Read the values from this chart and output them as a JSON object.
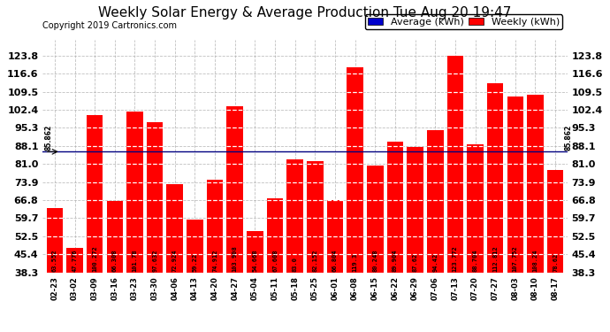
{
  "title": "Weekly Solar Energy & Average Production Tue Aug 20 19:47",
  "copyright": "Copyright 2019 Cartronics.com",
  "categories": [
    "02-23",
    "03-02",
    "03-09",
    "03-16",
    "03-23",
    "03-30",
    "04-06",
    "04-13",
    "04-20",
    "04-27",
    "05-04",
    "05-11",
    "05-18",
    "05-25",
    "06-01",
    "06-08",
    "06-15",
    "06-22",
    "06-29",
    "07-06",
    "07-13",
    "07-20",
    "07-27",
    "08-03",
    "08-10",
    "08-17"
  ],
  "values": [
    63.552,
    47.776,
    100.272,
    66.308,
    101.78,
    97.632,
    72.924,
    59.22,
    74.912,
    103.908,
    54.668,
    67.608,
    83.0,
    82.152,
    66.804,
    119.3,
    80.248,
    89.904,
    87.62,
    94.42,
    123.772,
    88.704,
    112.812,
    107.752,
    108.24,
    78.62
  ],
  "bar_color": "#ff0000",
  "average_value": 85.862,
  "average_label": "85.862",
  "ylim_min": 38.3,
  "ylim_max": 130.0,
  "yticks": [
    38.3,
    45.4,
    52.5,
    59.7,
    66.8,
    73.9,
    81.0,
    88.1,
    95.3,
    102.4,
    109.5,
    116.6,
    123.8
  ],
  "background_color": "#ffffff",
  "grid_color": "#b0b0b0",
  "legend_avg_color": "#0000cc",
  "legend_weekly_color": "#ff0000",
  "avg_line_color": "#000080",
  "value_text_color": "#000000",
  "title_color": "#000000",
  "copyright_color": "#000000",
  "title_fontsize": 11,
  "copyright_fontsize": 7,
  "tick_fontsize": 8,
  "value_fontsize": 5,
  "legend_fontsize": 8
}
